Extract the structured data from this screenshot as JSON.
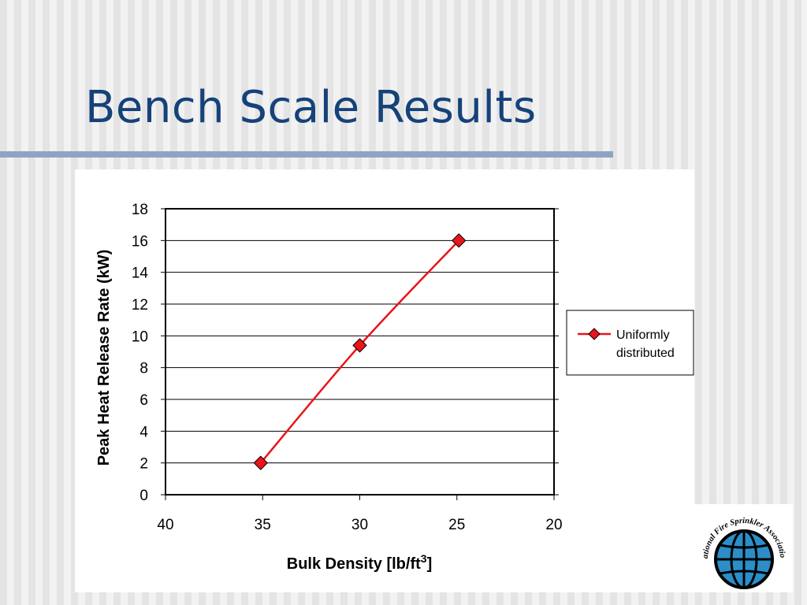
{
  "slide": {
    "title": "Bench Scale Results"
  },
  "colors": {
    "title": "#16427a",
    "rule": "#8fa4c3",
    "series": "#e8151b",
    "logo_globe": "#2b8ec8"
  },
  "logo": {
    "text": "International Fire Sprinkler Association, Ltd.",
    "icon": "globe-icon"
  },
  "chart_data": {
    "type": "line",
    "title": "",
    "xlabel": "Bulk Density [lb/ft",
    "xlabel_sup": "3",
    "xlabel_end": "]",
    "ylabel": "Peak Heat Release Rate (kW)",
    "xlim": [
      40,
      20
    ],
    "ylim": [
      0,
      18
    ],
    "x_reversed": true,
    "grid": "horizontal",
    "legend": "right",
    "xticks": [
      40,
      35,
      30,
      25,
      20
    ],
    "yticks": [
      0,
      2,
      4,
      6,
      8,
      10,
      12,
      14,
      16,
      18
    ],
    "series": [
      {
        "name": "Uniformly distributed",
        "name_lines": [
          "Uniformly",
          "distributed"
        ],
        "x": [
          35.1,
          30,
          24.9
        ],
        "y": [
          2,
          9.4,
          16
        ],
        "marker": "diamond",
        "color": "#e8151b"
      }
    ]
  }
}
